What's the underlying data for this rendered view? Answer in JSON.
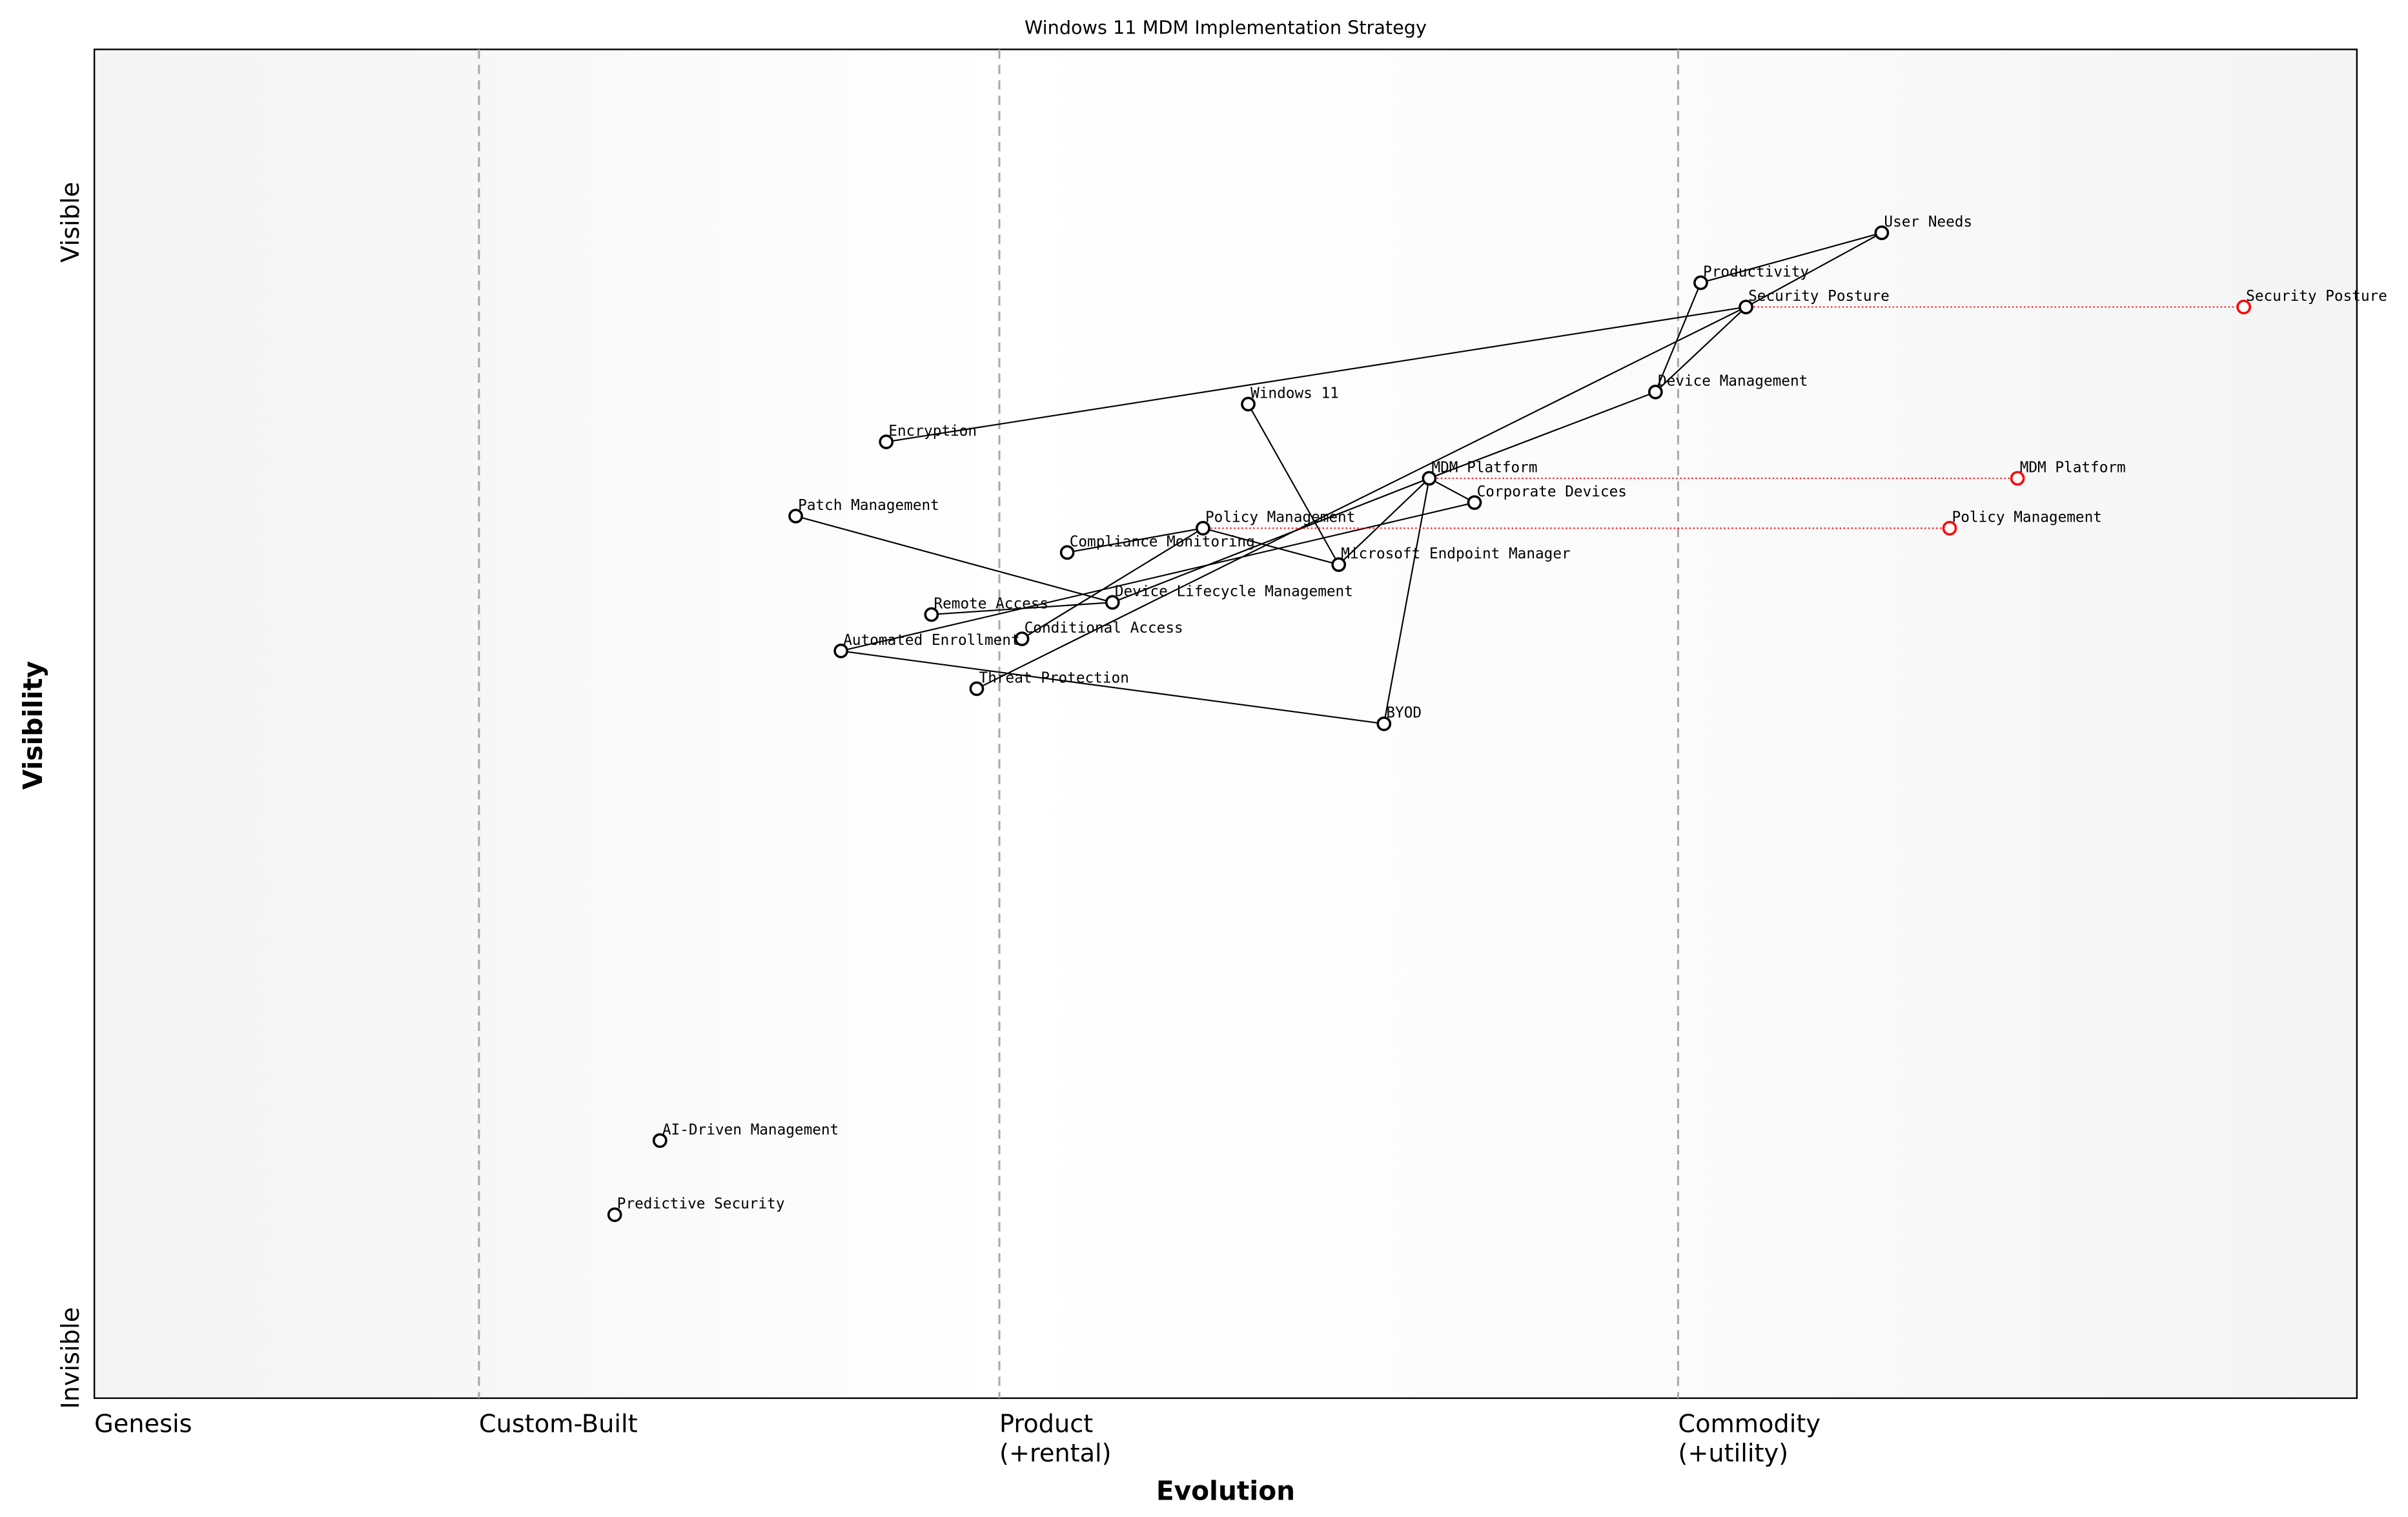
{
  "title": "Windows 11 MDM Implementation Strategy",
  "x_axis": {
    "label": "Evolution",
    "stages": [
      {
        "name": "Genesis",
        "sub": "",
        "at": 0
      },
      {
        "name": "Custom-Built",
        "sub": "",
        "at": 0.17
      },
      {
        "name": "Product",
        "sub": "(+rental)",
        "at": 0.4
      },
      {
        "name": "Commodity",
        "sub": "(+utility)",
        "at": 0.7
      }
    ]
  },
  "y_axis": {
    "label": "Visibility",
    "top": "Visible",
    "bottom": "Invisible"
  },
  "colors": {
    "node": "#000000",
    "evolved": "#ff0000",
    "stage_line": "#aaaaaa"
  },
  "chart_data": {
    "type": "wardley-map",
    "xlim": [
      0,
      1
    ],
    "ylim": [
      0,
      1
    ],
    "components": [
      {
        "name": "User Needs",
        "evolution": 0.79,
        "visibility": 0.864
      },
      {
        "name": "Productivity",
        "evolution": 0.71,
        "visibility": 0.827
      },
      {
        "name": "Security Posture",
        "evolution": 0.73,
        "visibility": 0.809
      },
      {
        "name": "Device Management",
        "evolution": 0.69,
        "visibility": 0.746
      },
      {
        "name": "Windows 11",
        "evolution": 0.51,
        "visibility": 0.737
      },
      {
        "name": "Encryption",
        "evolution": 0.35,
        "visibility": 0.709
      },
      {
        "name": "MDM Platform",
        "evolution": 0.59,
        "visibility": 0.682
      },
      {
        "name": "Corporate Devices",
        "evolution": 0.61,
        "visibility": 0.664
      },
      {
        "name": "Patch Management",
        "evolution": 0.31,
        "visibility": 0.654
      },
      {
        "name": "Policy Management",
        "evolution": 0.49,
        "visibility": 0.645
      },
      {
        "name": "Compliance Monitoring",
        "evolution": 0.43,
        "visibility": 0.627
      },
      {
        "name": "Microsoft Endpoint Manager",
        "evolution": 0.55,
        "visibility": 0.618
      },
      {
        "name": "Device Lifecycle Management",
        "evolution": 0.45,
        "visibility": 0.59
      },
      {
        "name": "Remote Access",
        "evolution": 0.37,
        "visibility": 0.581
      },
      {
        "name": "Conditional Access",
        "evolution": 0.41,
        "visibility": 0.563
      },
      {
        "name": "Automated Enrollment",
        "evolution": 0.33,
        "visibility": 0.554
      },
      {
        "name": "Threat Protection",
        "evolution": 0.39,
        "visibility": 0.526
      },
      {
        "name": "BYOD",
        "evolution": 0.57,
        "visibility": 0.5
      },
      {
        "name": "AI-Driven Management",
        "evolution": 0.25,
        "visibility": 0.191
      },
      {
        "name": "Predictive Security",
        "evolution": 0.23,
        "visibility": 0.136
      }
    ],
    "links": [
      [
        "User Needs",
        "Productivity"
      ],
      [
        "User Needs",
        "Security Posture"
      ],
      [
        "Productivity",
        "Device Management"
      ],
      [
        "Security Posture",
        "Device Management"
      ],
      [
        "Security Posture",
        "Encryption"
      ],
      [
        "Security Posture",
        "Threat Protection"
      ],
      [
        "Device Management",
        "MDM Platform"
      ],
      [
        "MDM Platform",
        "Corporate Devices"
      ],
      [
        "MDM Platform",
        "Microsoft Endpoint Manager"
      ],
      [
        "MDM Platform",
        "BYOD"
      ],
      [
        "MDM Platform",
        "Device Lifecycle Management"
      ],
      [
        "Windows 11",
        "Microsoft Endpoint Manager"
      ],
      [
        "Policy Management",
        "Microsoft Endpoint Manager"
      ],
      [
        "Policy Management",
        "Compliance Monitoring"
      ],
      [
        "Policy Management",
        "Conditional Access"
      ],
      [
        "Corporate Devices",
        "Automated Enrollment"
      ],
      [
        "Patch Management",
        "Device Lifecycle Management"
      ],
      [
        "Remote Access",
        "Device Lifecycle Management"
      ],
      [
        "Automated Enrollment",
        "BYOD"
      ]
    ],
    "evolutions": [
      {
        "name": "Security Posture",
        "to_evolution": 0.95
      },
      {
        "name": "MDM Platform",
        "to_evolution": 0.85
      },
      {
        "name": "Policy Management",
        "to_evolution": 0.82
      }
    ]
  }
}
